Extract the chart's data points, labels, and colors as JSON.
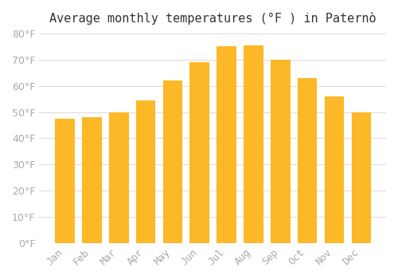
{
  "title": "Average monthly temperatures (°F ) in Paternò",
  "months": [
    "Jan",
    "Feb",
    "Mar",
    "Apr",
    "May",
    "Jun",
    "Jul",
    "Aug",
    "Sep",
    "Oct",
    "Nov",
    "Dec"
  ],
  "values": [
    47.5,
    48,
    50,
    54.5,
    62,
    69,
    75,
    75.5,
    70,
    63,
    56,
    50
  ],
  "bar_color": "#FDB827",
  "bar_edge_color": "#E8980A",
  "background_color": "#FFFFFF",
  "grid_color": "#DDDDDD",
  "ylim": [
    0,
    80
  ],
  "yticks": [
    0,
    10,
    20,
    30,
    40,
    50,
    60,
    70,
    80
  ],
  "title_fontsize": 11,
  "tick_fontsize": 9,
  "tick_color": "#AAAAAA"
}
